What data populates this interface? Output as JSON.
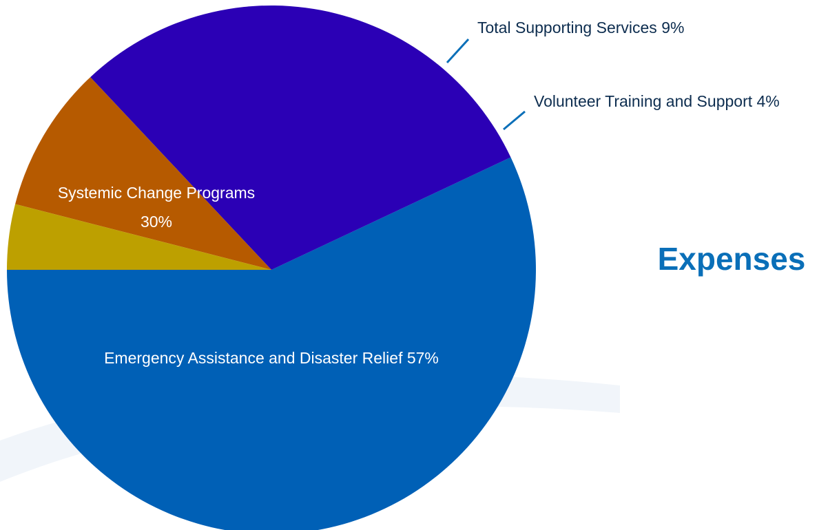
{
  "chart_data": {
    "type": "pie",
    "title": "Expenses",
    "title_color": "#0a6fb8",
    "slices": [
      {
        "label": "Emergency Assistance and Disaster Relief 57%",
        "value": 57,
        "color": "#0060b6",
        "label_color": "#ffffff"
      },
      {
        "label": "Systemic Change Programs",
        "label_line2": "30%",
        "value": 30,
        "color": "#2b00b5",
        "label_color": "#ffffff"
      },
      {
        "label": "Total Supporting Services 9%",
        "value": 9,
        "color": "#b65a00",
        "label_color": "#0d2d4f",
        "leader_color": "#0a6fb8"
      },
      {
        "label": "Volunteer Training and Support 4%",
        "value": 4,
        "color": "#bda000",
        "label_color": "#0d2d4f",
        "leader_color": "#0a6fb8"
      }
    ],
    "background_decoration_color": "#f1f5fa"
  }
}
